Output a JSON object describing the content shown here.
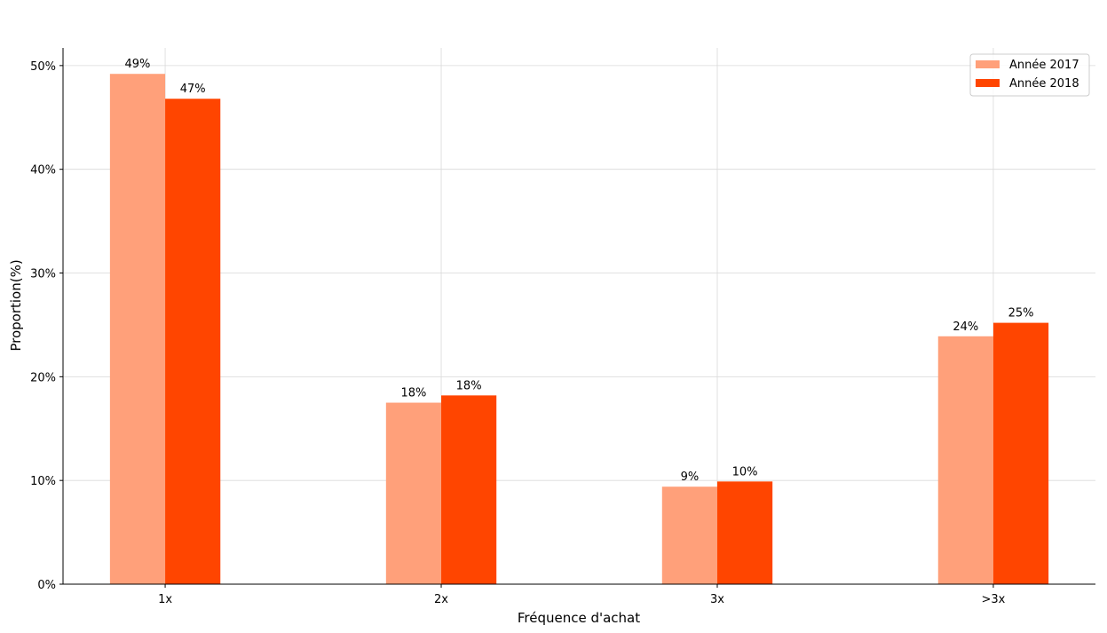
{
  "chart_data": {
    "type": "bar",
    "title": "",
    "xlabel": "Fréquence d'achat",
    "ylabel": "Proportion(%)",
    "categories": [
      "1x",
      "2x",
      "3x",
      ">3x"
    ],
    "series": [
      {
        "name": "Année 2017",
        "color": "#FFA07A",
        "values": [
          49.2,
          17.5,
          9.4,
          23.9
        ],
        "labels": [
          "49%",
          "18%",
          "9%",
          "24%"
        ]
      },
      {
        "name": "Année 2018",
        "color": "#FF4500",
        "values": [
          46.8,
          18.2,
          9.9,
          25.2
        ],
        "labels": [
          "47%",
          "18%",
          "10%",
          "25%"
        ]
      }
    ],
    "ylim": [
      0,
      51.7
    ],
    "yticks": [
      0,
      10,
      20,
      30,
      40,
      50
    ],
    "ytick_labels": [
      "0%",
      "10%",
      "20%",
      "30%",
      "40%",
      "50%"
    ],
    "grid": true,
    "legend_position": "top-right"
  }
}
